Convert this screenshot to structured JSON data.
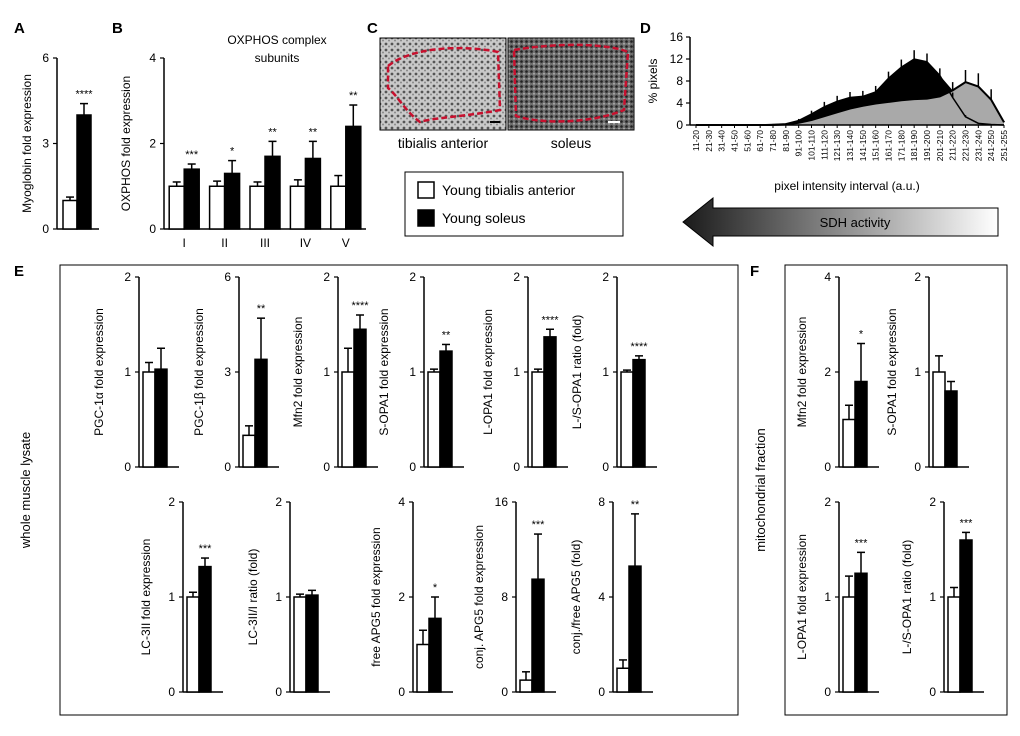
{
  "panel_letters": {
    "a": "A",
    "b": "B",
    "c": "C",
    "d": "D",
    "e": "E",
    "f": "F"
  },
  "legend": {
    "young_ta": "Young tibialis anterior",
    "young_sol": "Young soleus"
  },
  "micrographs": {
    "ta_caption": "tibialis anterior",
    "sol_caption": "soleus"
  },
  "sdh_arrow_label": "SDH activity",
  "side_labels": {
    "e": "whole muscle lysate",
    "f": "mitochondrial fraction"
  },
  "colors": {
    "ta": "#ffffff",
    "soleus": "#000000",
    "area_gray": "#a9a9a9",
    "highlight_red": "#c8102e",
    "arrow_dark": "#333333"
  },
  "chart_data": [
    {
      "id": "A",
      "type": "bar",
      "ylabel": "Myoglobin fold expression",
      "ylim": [
        0,
        6
      ],
      "yticks": [
        "0",
        "3",
        "6"
      ],
      "categories": [
        ""
      ],
      "series": [
        {
          "name": "Young tibialis anterior",
          "values": [
            1.0
          ],
          "errors": [
            0.12
          ]
        },
        {
          "name": "Young soleus",
          "values": [
            4.0
          ],
          "errors": [
            0.4
          ]
        }
      ],
      "annotations": [
        "****"
      ]
    },
    {
      "id": "B",
      "type": "bar",
      "title": "OXPHOS complex subunits",
      "ylabel": "OXPHOS fold expression",
      "ylim": [
        0,
        4
      ],
      "yticks": [
        "0",
        "2",
        "4"
      ],
      "categories": [
        "I",
        "II",
        "III",
        "IV",
        "V"
      ],
      "series": [
        {
          "name": "Young tibialis anterior",
          "values": [
            1.0,
            1.0,
            1.0,
            1.0,
            1.0
          ],
          "errors": [
            0.1,
            0.12,
            0.1,
            0.15,
            0.25
          ]
        },
        {
          "name": "Young soleus",
          "values": [
            1.4,
            1.3,
            1.7,
            1.65,
            2.4
          ]
        }
      ],
      "soleus_errors": [
        0.12,
        0.3,
        0.35,
        0.4,
        0.5
      ],
      "annotations": [
        "***",
        "*",
        "**",
        "**",
        "**"
      ]
    },
    {
      "id": "D",
      "type": "area",
      "ylabel": "% pixels",
      "xlabel": "pixel intensity interval (a.u.)",
      "ylim": [
        0,
        16
      ],
      "yticks": [
        "0",
        "4",
        "8",
        "12",
        "16"
      ],
      "x": [
        "11-20",
        "21-30",
        "31-40",
        "41-50",
        "51-60",
        "61-70",
        "71-80",
        "81-90",
        "91-100",
        "101-110",
        "111-120",
        "121-130",
        "131-140",
        "141-150",
        "151-160",
        "161-170",
        "171-180",
        "181-190",
        "191-200",
        "201-210",
        "211-220",
        "221-230",
        "231-240",
        "241-250",
        "251-255"
      ],
      "series": [
        {
          "name": "Young tibialis anterior",
          "values": [
            0,
            0,
            0,
            0,
            0,
            0,
            0,
            0.1,
            0.4,
            0.9,
            1.6,
            2.3,
            3.0,
            3.5,
            3.9,
            4.2,
            4.5,
            4.7,
            4.8,
            5.2,
            6.3,
            7.8,
            7.0,
            4.6,
            0.5
          ],
          "errors": [
            0,
            0,
            0,
            0,
            0,
            0,
            0,
            0.1,
            0.2,
            0.3,
            0.5,
            0.7,
            0.9,
            1.0,
            1.0,
            1.0,
            1.0,
            1.0,
            1.0,
            1.2,
            1.5,
            2.2,
            2.4,
            1.9,
            0.2
          ]
        },
        {
          "name": "Young soleus",
          "values": [
            0,
            0,
            0,
            0,
            0,
            0,
            0.1,
            0.2,
            0.8,
            2.0,
            3.3,
            4.3,
            5.0,
            5.2,
            6.0,
            8.5,
            10.5,
            12.0,
            11.5,
            9.0,
            5.0,
            1.5,
            0.3,
            0.1,
            0
          ],
          "errors": [
            0,
            0,
            0,
            0,
            0,
            0,
            0.1,
            0.1,
            0.3,
            0.6,
            0.9,
            1.0,
            1.0,
            1.0,
            1.1,
            1.2,
            1.4,
            1.6,
            1.5,
            1.3,
            0.9,
            0.3,
            0.1,
            0,
            0
          ]
        }
      ]
    },
    {
      "id": "E1",
      "type": "bar",
      "ylabel": "PGC-1α fold expression",
      "ylim": [
        0,
        2
      ],
      "yticks": [
        "0",
        "1",
        "2"
      ],
      "series": [
        {
          "name": "Young tibialis anterior",
          "values": [
            1.0
          ],
          "errors": [
            0.1
          ]
        },
        {
          "name": "Young soleus",
          "values": [
            1.03
          ],
          "errors": [
            0.22
          ]
        }
      ],
      "annotations": [
        ""
      ]
    },
    {
      "id": "E2",
      "type": "bar",
      "ylabel": "PGC-1β fold expression",
      "ylim": [
        0,
        6
      ],
      "yticks": [
        "0",
        "3",
        "6"
      ],
      "series": [
        {
          "name": "Young tibialis anterior",
          "values": [
            1.0
          ],
          "errors": [
            0.3
          ]
        },
        {
          "name": "Young soleus",
          "values": [
            3.4
          ],
          "errors": [
            1.3
          ]
        }
      ],
      "annotations": [
        "**"
      ]
    },
    {
      "id": "E3",
      "type": "bar",
      "ylabel": "Mfn2 fold expression",
      "ylim": [
        0,
        2
      ],
      "yticks": [
        "0",
        "1",
        "2"
      ],
      "series": [
        {
          "name": "Young tibialis anterior",
          "values": [
            1.0
          ],
          "errors": [
            0.25
          ]
        },
        {
          "name": "Young soleus",
          "values": [
            1.45
          ],
          "errors": [
            0.15
          ]
        }
      ],
      "annotations": [
        "****"
      ]
    },
    {
      "id": "E4",
      "type": "bar",
      "ylabel": "S-OPA1 fold expression",
      "ylim": [
        0,
        2
      ],
      "yticks": [
        "0",
        "1",
        "2"
      ],
      "series": [
        {
          "name": "Young tibialis anterior",
          "values": [
            1.0
          ],
          "errors": [
            0.03
          ]
        },
        {
          "name": "Young soleus",
          "values": [
            1.22
          ],
          "errors": [
            0.07
          ]
        }
      ],
      "annotations": [
        "**"
      ]
    },
    {
      "id": "E5",
      "type": "bar",
      "ylabel": "L-OPA1 fold expression",
      "ylim": [
        0,
        2
      ],
      "yticks": [
        "0",
        "1",
        "2"
      ],
      "series": [
        {
          "name": "Young tibialis anterior",
          "values": [
            1.0
          ],
          "errors": [
            0.03
          ]
        },
        {
          "name": "Young soleus",
          "values": [
            1.37
          ],
          "errors": [
            0.08
          ]
        }
      ],
      "annotations": [
        "****"
      ]
    },
    {
      "id": "E6",
      "type": "bar",
      "ylabel": "L-/S-OPA1 ratio (fold)",
      "ylim": [
        0,
        2
      ],
      "yticks": [
        "0",
        "1",
        "2"
      ],
      "series": [
        {
          "name": "Young tibialis anterior",
          "values": [
            1.0
          ],
          "errors": [
            0.02
          ]
        },
        {
          "name": "Young soleus",
          "values": [
            1.13
          ],
          "errors": [
            0.04
          ]
        }
      ],
      "annotations": [
        "****"
      ]
    },
    {
      "id": "E7",
      "type": "bar",
      "ylabel": "LC-3II fold expression",
      "ylim": [
        0,
        2
      ],
      "yticks": [
        "0",
        "1",
        "2"
      ],
      "series": [
        {
          "name": "Young tibialis anterior",
          "values": [
            1.0
          ],
          "errors": [
            0.05
          ]
        },
        {
          "name": "Young soleus",
          "values": [
            1.32
          ],
          "errors": [
            0.09
          ]
        }
      ],
      "annotations": [
        "***"
      ]
    },
    {
      "id": "E8",
      "type": "bar",
      "ylabel": "LC-3II/I ratio (fold)",
      "ylim": [
        0,
        2
      ],
      "yticks": [
        "0",
        "1",
        "2"
      ],
      "series": [
        {
          "name": "Young tibialis anterior",
          "values": [
            1.0
          ],
          "errors": [
            0.03
          ]
        },
        {
          "name": "Young soleus",
          "values": [
            1.02
          ],
          "errors": [
            0.05
          ]
        }
      ],
      "annotations": [
        ""
      ]
    },
    {
      "id": "E9",
      "type": "bar",
      "ylabel": "free APG5 fold expression",
      "ylim": [
        0,
        4
      ],
      "yticks": [
        "0",
        "2",
        "4"
      ],
      "series": [
        {
          "name": "Young tibialis anterior",
          "values": [
            1.0
          ],
          "errors": [
            0.3
          ]
        },
        {
          "name": "Young soleus",
          "values": [
            1.55
          ],
          "errors": [
            0.45
          ]
        }
      ],
      "annotations": [
        "*"
      ]
    },
    {
      "id": "E10",
      "type": "bar",
      "ylabel": "conj. APG5 fold expression",
      "ylim": [
        0,
        16
      ],
      "yticks": [
        "0",
        "8",
        "16"
      ],
      "series": [
        {
          "name": "Young tibialis anterior",
          "values": [
            1.0
          ],
          "errors": [
            0.7
          ]
        },
        {
          "name": "Young soleus",
          "values": [
            9.5
          ],
          "errors": [
            3.8
          ]
        }
      ],
      "annotations": [
        "***"
      ]
    },
    {
      "id": "E11",
      "type": "bar",
      "ylabel": "conj./free APG5 (fold)",
      "ylim": [
        0,
        8
      ],
      "yticks": [
        "0",
        "4",
        "8"
      ],
      "series": [
        {
          "name": "Young tibialis anterior",
          "values": [
            1.0
          ],
          "errors": [
            0.35
          ]
        },
        {
          "name": "Young soleus",
          "values": [
            5.3
          ],
          "errors": [
            2.2
          ]
        }
      ],
      "annotations": [
        "**"
      ]
    },
    {
      "id": "F1",
      "type": "bar",
      "ylabel": "Mfn2 fold expression",
      "ylim": [
        0,
        4
      ],
      "yticks": [
        "0",
        "2",
        "4"
      ],
      "series": [
        {
          "name": "Young tibialis anterior",
          "values": [
            1.0
          ],
          "errors": [
            0.3
          ]
        },
        {
          "name": "Young soleus",
          "values": [
            1.8
          ],
          "errors": [
            0.8
          ]
        }
      ],
      "annotations": [
        "*"
      ]
    },
    {
      "id": "F2",
      "type": "bar",
      "ylabel": "S-OPA1 fold expression",
      "ylim": [
        0,
        2
      ],
      "yticks": [
        "0",
        "1",
        "2"
      ],
      "series": [
        {
          "name": "Young tibialis anterior",
          "values": [
            1.0
          ],
          "errors": [
            0.17
          ]
        },
        {
          "name": "Young soleus",
          "values": [
            0.8
          ],
          "errors": [
            0.1
          ]
        }
      ],
      "annotations": [
        ""
      ]
    },
    {
      "id": "F3",
      "type": "bar",
      "ylabel": "L-OPA1 fold expression",
      "ylim": [
        0,
        2
      ],
      "yticks": [
        "0",
        "1",
        "2"
      ],
      "series": [
        {
          "name": "Young tibialis anterior",
          "values": [
            1.0
          ],
          "errors": [
            0.22
          ]
        },
        {
          "name": "Young soleus",
          "values": [
            1.25
          ],
          "errors": [
            0.22
          ]
        }
      ],
      "annotations": [
        "***"
      ]
    },
    {
      "id": "F4",
      "type": "bar",
      "ylabel": "L-/S-OPA1 ratio (fold)",
      "ylim": [
        0,
        2
      ],
      "yticks": [
        "0",
        "1",
        "2"
      ],
      "series": [
        {
          "name": "Young tibialis anterior",
          "values": [
            1.0
          ],
          "errors": [
            0.1
          ]
        },
        {
          "name": "Young soleus",
          "values": [
            1.6
          ],
          "errors": [
            0.08
          ]
        }
      ],
      "annotations": [
        "***"
      ]
    }
  ]
}
